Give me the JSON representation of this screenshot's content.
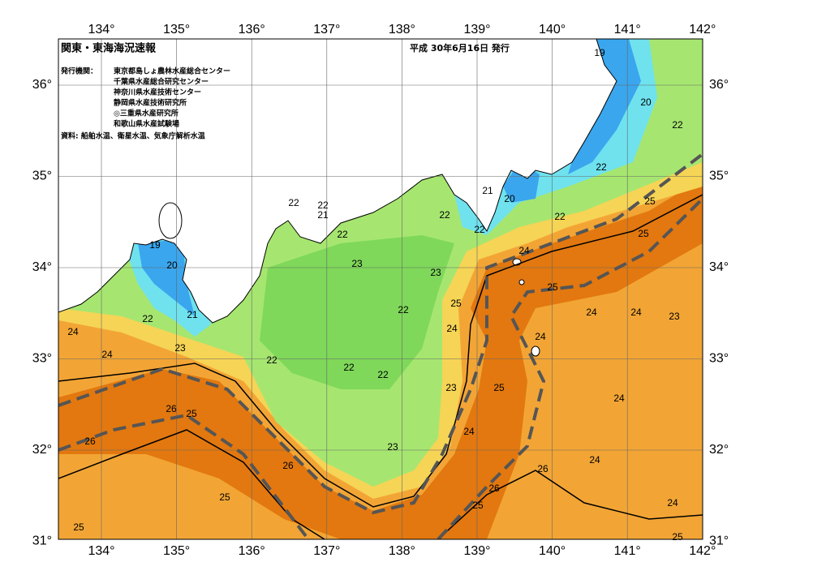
{
  "header": {
    "title": "関東・東海海況速報",
    "date": "平成 30年6月16日 発行"
  },
  "issuers": {
    "label": "発行機関：",
    "organizations": [
      "東京都島しょ農林水産総合センター",
      "千葉県水産総合研究センター",
      "神奈川県水産技術センター",
      "静岡県水産技術研究所",
      "◎三重県水産研究所",
      "和歌山県水産試験場"
    ]
  },
  "source": "資料: 船舶水温、衛星水温、気象庁解析水温",
  "map": {
    "lon_ticks": [
      {
        "value": 134,
        "label": "134°"
      },
      {
        "value": 135,
        "label": "135°"
      },
      {
        "value": 136,
        "label": "136°"
      },
      {
        "value": 137,
        "label": "137°"
      },
      {
        "value": 138,
        "label": "138°"
      },
      {
        "value": 139,
        "label": "139°"
      },
      {
        "value": 140,
        "label": "140°"
      },
      {
        "value": 141,
        "label": "141°"
      },
      {
        "value": 142,
        "label": "142°"
      }
    ],
    "lat_ticks": [
      {
        "value": 31,
        "label": "31°"
      },
      {
        "value": 32,
        "label": "32°"
      },
      {
        "value": 33,
        "label": "33°"
      },
      {
        "value": 34,
        "label": "34°"
      },
      {
        "value": 35,
        "label": "35°"
      },
      {
        "value": 36,
        "label": "36°"
      }
    ],
    "contour_labels": [
      "19",
      "20",
      "22",
      "22",
      "21",
      "20",
      "25",
      "22",
      "25",
      "22",
      "22",
      "24",
      "22",
      "22",
      "21",
      "22",
      "19",
      "20",
      "23",
      "23",
      "25",
      "24",
      "24",
      "23",
      "21",
      "22",
      "22",
      "25",
      "24",
      "24",
      "24",
      "24",
      "23",
      "22",
      "22",
      "22",
      "23",
      "25",
      "24",
      "26",
      "25",
      "26",
      "24",
      "23",
      "24",
      "26",
      "26",
      "26",
      "25",
      "25",
      "24",
      "25",
      "25"
    ]
  }
}
